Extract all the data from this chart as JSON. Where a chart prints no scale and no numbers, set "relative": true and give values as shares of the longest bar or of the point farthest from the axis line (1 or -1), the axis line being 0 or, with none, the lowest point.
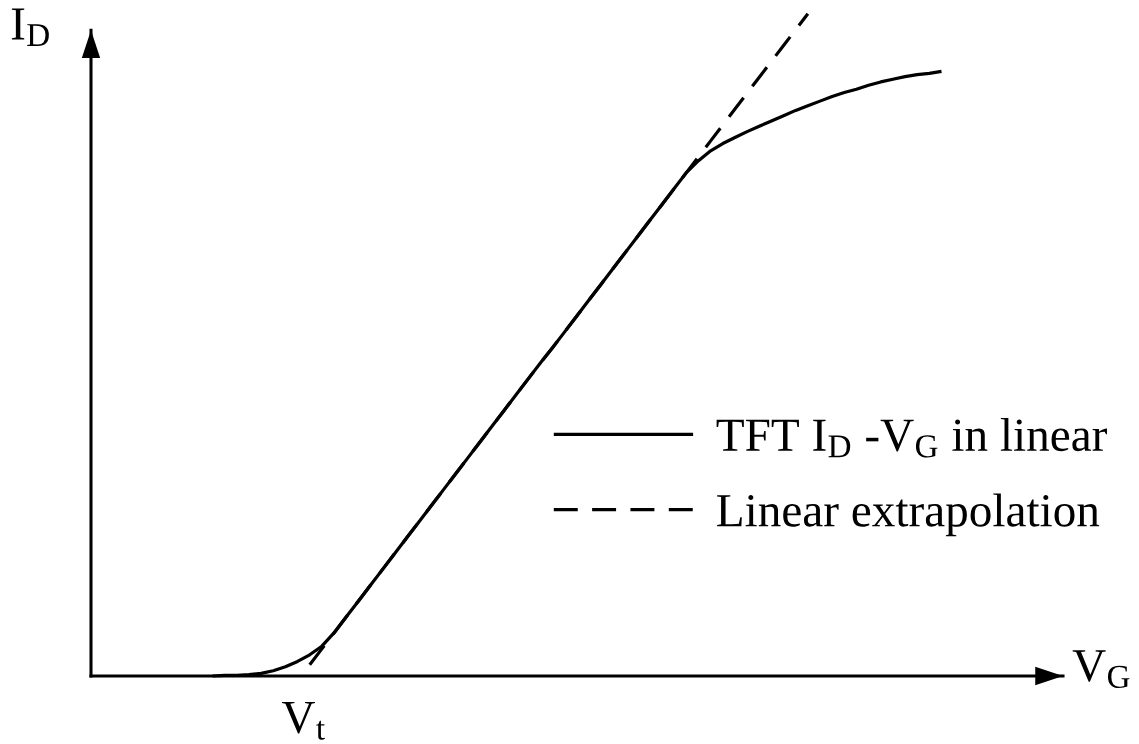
{
  "chart_data": {
    "type": "line",
    "relative": true,
    "xlabel": "V$_{G}$",
    "ylabel": "I$_{D}$",
    "annotations": [
      "V$_{t}$"
    ],
    "legend": "bottom right",
    "categories": [
      null,
      null,
      null,
      null,
      null,
      null,
      null,
      null,
      null,
      null,
      null,
      null,
      null,
      null,
      null,
      null,
      null,
      null,
      null,
      null,
      null,
      null,
      null,
      null,
      null,
      null,
      null,
      null,
      null,
      null,
      null,
      null,
      null,
      null,
      null,
      null,
      null,
      null,
      null,
      null,
      null,
      null,
      null,
      null,
      null,
      null,
      null,
      null,
      null,
      null,
      null,
      null,
      null,
      null,
      null,
      null,
      null,
      null,
      null,
      null,
      null,
      null,
      null,
      null,
      null,
      null,
      null,
      null,
      null,
      null,
      null,
      null,
      null,
      null,
      null,
      null,
      null,
      null,
      null,
      null,
      null
    ],
    "series": [
      {
        "name": "TFT I$_{D}$ -V$_{G}$ in linear",
        "color": "#000000",
        "line_style": "solid",
        "values": [
          null,
          null,
          null,
          null,
          null,
          null,
          null,
          null,
          null,
          null,
          0.0,
          0.001,
          0.001,
          0.002,
          0.004,
          0.008,
          0.014,
          0.022,
          0.032,
          0.045,
          0.065,
          0.089,
          0.113,
          0.137,
          0.161,
          0.185,
          0.209,
          0.233,
          0.257,
          0.281,
          0.305,
          0.329,
          0.353,
          0.377,
          0.401,
          0.425,
          0.449,
          0.473,
          0.496,
          0.52,
          0.544,
          0.568,
          0.592,
          0.616,
          0.64,
          0.664,
          0.688,
          0.712,
          0.736,
          0.76,
          0.778,
          0.793,
          0.804,
          0.813,
          0.822,
          0.83,
          0.838,
          0.846,
          0.854,
          0.861,
          0.868,
          0.875,
          0.881,
          0.886,
          0.892,
          0.897,
          0.901,
          0.905,
          0.908,
          0.91,
          0.913,
          null,
          null,
          null,
          null,
          null,
          null,
          null,
          null,
          null,
          null
        ]
      },
      {
        "name": "Linear extrapolation",
        "color": "#000000",
        "line_style": "dashed",
        "values": [
          null,
          null,
          null,
          null,
          null,
          null,
          null,
          null,
          null,
          null,
          null,
          null,
          null,
          null,
          null,
          null,
          null,
          null,
          0.017,
          0.041,
          0.065,
          0.089,
          0.113,
          0.137,
          0.161,
          0.185,
          0.209,
          0.233,
          0.257,
          0.281,
          0.305,
          0.329,
          0.353,
          0.377,
          0.401,
          0.425,
          0.449,
          0.473,
          0.496,
          0.52,
          0.544,
          0.568,
          0.592,
          0.616,
          0.64,
          0.664,
          0.688,
          0.712,
          0.736,
          0.76,
          0.784,
          0.808,
          0.832,
          0.856,
          0.88,
          0.904,
          0.928,
          0.952,
          0.976,
          1.0,
          null,
          null,
          null,
          null,
          null,
          null,
          null,
          null,
          null,
          null,
          null,
          null,
          null,
          null,
          null,
          null,
          null,
          null,
          null,
          null,
          null
        ]
      }
    ]
  }
}
